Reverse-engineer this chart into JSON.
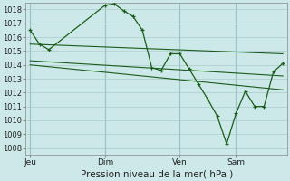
{
  "background_color": "#cce8e8",
  "grid_color": "#aacccc",
  "line_color": "#1a5c1a",
  "marker_color": "#1a5c1a",
  "title": "Pression niveau de la mer( hPa )",
  "ylim": [
    1007.5,
    1018.5
  ],
  "yticks": [
    1008,
    1009,
    1010,
    1011,
    1012,
    1013,
    1014,
    1015,
    1016,
    1017,
    1018
  ],
  "xtick_labels": [
    "Jeu",
    "Dim",
    "Ven",
    "Sam"
  ],
  "xtick_positions": [
    0,
    8,
    16,
    22
  ],
  "day_lines": [
    0,
    8,
    16,
    22
  ],
  "xlim": [
    -0.5,
    27.5
  ],
  "series": [
    {
      "x": [
        0,
        1,
        2,
        8,
        9,
        10,
        11,
        12,
        13,
        14,
        15,
        16,
        17,
        18,
        19,
        20,
        21,
        22,
        23,
        24,
        25,
        26,
        27
      ],
      "y": [
        1016.5,
        1015.5,
        1015.1,
        1018.3,
        1018.4,
        1017.9,
        1017.5,
        1016.5,
        1013.8,
        1013.6,
        1014.8,
        1014.8,
        1013.7,
        1012.6,
        1011.5,
        1010.3,
        1008.3,
        1010.5,
        1012.1,
        1011.0,
        1011.0,
        1013.5,
        1014.1
      ],
      "has_marker": true
    },
    {
      "x": [
        0,
        27
      ],
      "y": [
        1015.5,
        1014.8
      ],
      "has_marker": false
    },
    {
      "x": [
        0,
        27
      ],
      "y": [
        1014.3,
        1013.2
      ],
      "has_marker": false
    },
    {
      "x": [
        0,
        27
      ],
      "y": [
        1014.0,
        1012.2
      ],
      "has_marker": false
    }
  ]
}
